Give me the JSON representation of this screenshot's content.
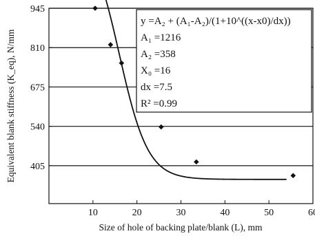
{
  "chart_data": {
    "type": "scatter",
    "xlabel": "Size of hole of backing plate/blank (L), mm",
    "ylabel": "Equivalent blank stiffness (K_eq), N/mm",
    "x_ticks": [
      10,
      20,
      30,
      40,
      50,
      60
    ],
    "y_ticks": [
      405,
      540,
      675,
      810,
      945
    ],
    "xlim": [
      0,
      60
    ],
    "ylim": [
      275,
      945
    ],
    "grid": "horizontal",
    "series": [
      {
        "points": [
          {
            "x": 10.5,
            "y": 945
          },
          {
            "x": 14,
            "y": 820
          },
          {
            "x": 16.5,
            "y": 757
          },
          {
            "x": 20.5,
            "y": 689
          },
          {
            "x": 25.5,
            "y": 538
          },
          {
            "x": 33.5,
            "y": 418
          },
          {
            "x": 55.5,
            "y": 371
          }
        ]
      }
    ],
    "fit": {
      "type": "boltzmann-like",
      "A1": 1216,
      "A2": 358,
      "X0": 16,
      "dx": 7.5,
      "x_range": [
        10.5,
        54
      ]
    },
    "annotation": {
      "lines": [
        "y =A₂ + (A₁-A₂)/(1+10^((x-x0)/dx))",
        "A₁ =1216",
        "A₂ =358",
        "X₀ =16",
        "dx =7.5",
        "R² =0.99"
      ]
    }
  }
}
